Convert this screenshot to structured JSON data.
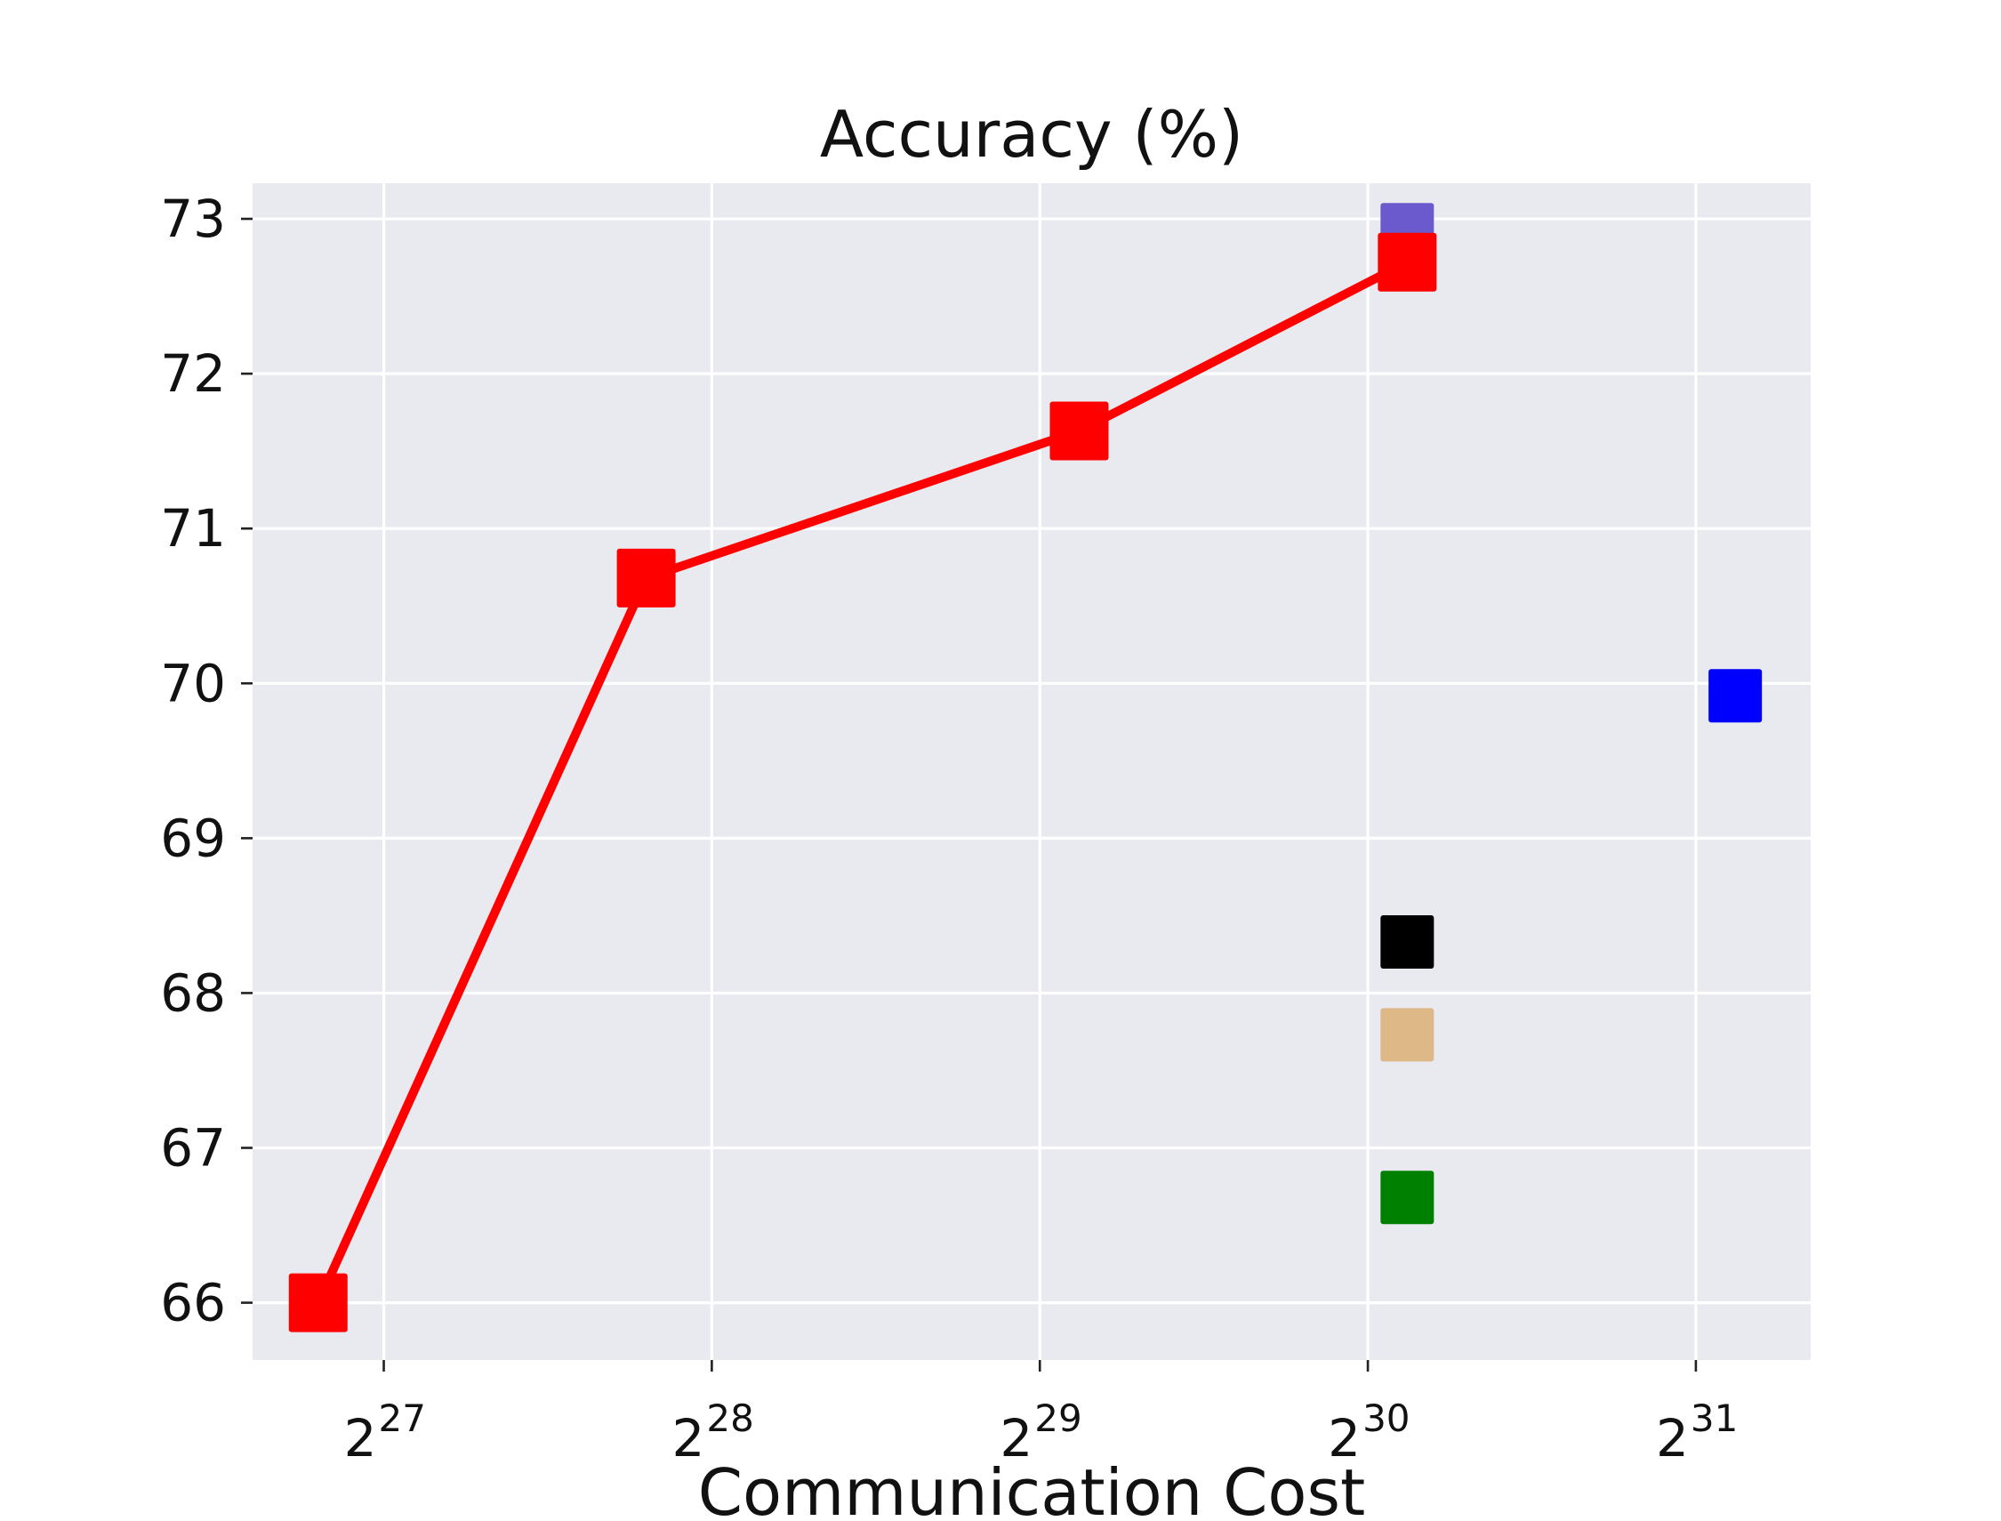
{
  "chart_data": {
    "type": "scatter",
    "title": "Accuracy (%)",
    "xlabel": "Communication Cost",
    "ylabel": "",
    "x_scale": "log2",
    "xlim": [
      26.6,
      31.35
    ],
    "ylim": [
      65.63,
      73.23
    ],
    "x_ticks": [
      {
        "value": 27,
        "base": "2",
        "exp": "27"
      },
      {
        "value": 28,
        "base": "2",
        "exp": "28"
      },
      {
        "value": 29,
        "base": "2",
        "exp": "29"
      },
      {
        "value": 30,
        "base": "2",
        "exp": "30"
      },
      {
        "value": 31,
        "base": "2",
        "exp": "31"
      }
    ],
    "y_ticks": [
      {
        "value": 66,
        "label": "66"
      },
      {
        "value": 67,
        "label": "67"
      },
      {
        "value": 68,
        "label": "68"
      },
      {
        "value": 69,
        "label": "69"
      },
      {
        "value": 70,
        "label": "70"
      },
      {
        "value": 71,
        "label": "71"
      },
      {
        "value": 72,
        "label": "72"
      },
      {
        "value": 73,
        "label": "73"
      }
    ],
    "grid": true,
    "background": "#e9eaf0",
    "series": [
      {
        "kind": "line",
        "color": "#ff0000",
        "marker": "square",
        "points": [
          {
            "x": "2^26.8",
            "log2x": 26.8,
            "y": 66.0
          },
          {
            "x": "2^27.8",
            "log2x": 27.8,
            "y": 70.68
          },
          {
            "x": "2^29.12",
            "log2x": 29.12,
            "y": 71.63
          },
          {
            "x": "2^30.12",
            "log2x": 30.12,
            "y": 72.72
          }
        ]
      },
      {
        "kind": "point",
        "color": "#6a5acd",
        "marker": "square",
        "points": [
          {
            "x": "2^30.12",
            "log2x": 30.12,
            "y": 72.93
          }
        ]
      },
      {
        "kind": "point",
        "color": "#0000ff",
        "marker": "square",
        "points": [
          {
            "x": "2^31.12",
            "log2x": 31.12,
            "y": 69.92
          }
        ]
      },
      {
        "kind": "point",
        "color": "#000000",
        "marker": "square",
        "points": [
          {
            "x": "2^30.12",
            "log2x": 30.12,
            "y": 68.33
          }
        ]
      },
      {
        "kind": "point",
        "color": "#deb887",
        "marker": "square",
        "points": [
          {
            "x": "2^30.12",
            "log2x": 30.12,
            "y": 67.73
          }
        ]
      },
      {
        "kind": "point",
        "color": "#008000",
        "marker": "square",
        "points": [
          {
            "x": "2^30.12",
            "log2x": 30.12,
            "y": 66.68
          }
        ]
      }
    ]
  }
}
